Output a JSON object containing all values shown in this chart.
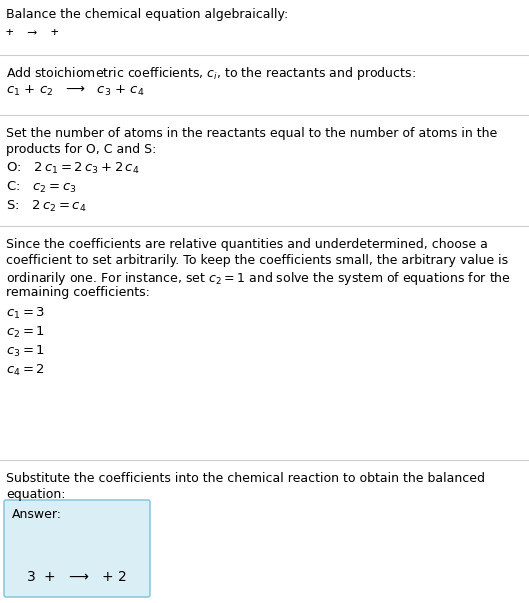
{
  "title": "Balance the chemical equation algebraically:",
  "line1": "+  ⟶  +",
  "section1_header": "Add stoichiometric coefficients, $c_i$, to the reactants and products:",
  "section1_eq": "$c_1$ + $c_2$   ⟶   $c_3$ + $c_4$",
  "section2_header": "Set the number of atoms in the reactants equal to the number of atoms in the\nproducts for O, C and S:",
  "section2_lines": [
    "O:   $2\\,c_1 = 2\\,c_3 + 2\\,c_4$",
    "C:   $c_2 = c_3$",
    "S:   $2\\,c_2 = c_4$"
  ],
  "section3_header": "Since the coefficients are relative quantities and underdetermined, choose a\ncoefficient to set arbitrarily. To keep the coefficients small, the arbitrary value is\nordinarily one. For instance, set $c_2 = 1$ and solve the system of equations for the\nremaining coefficients:",
  "section3_lines": [
    "$c_1 = 3$",
    "$c_2 = 1$",
    "$c_3 = 1$",
    "$c_4 = 2$"
  ],
  "section4_header": "Substitute the coefficients into the chemical reaction to obtain the balanced\nequation:",
  "answer_label": "Answer:",
  "answer_eq": "$3$  +   ⟶   + $2$",
  "bg_color": "#ffffff",
  "answer_bg_color": "#daeef5",
  "answer_border_color": "#90c8dc",
  "text_color": "#000000",
  "line_color": "#cccccc",
  "fig_width": 5.29,
  "fig_height": 6.03,
  "dpi": 100
}
